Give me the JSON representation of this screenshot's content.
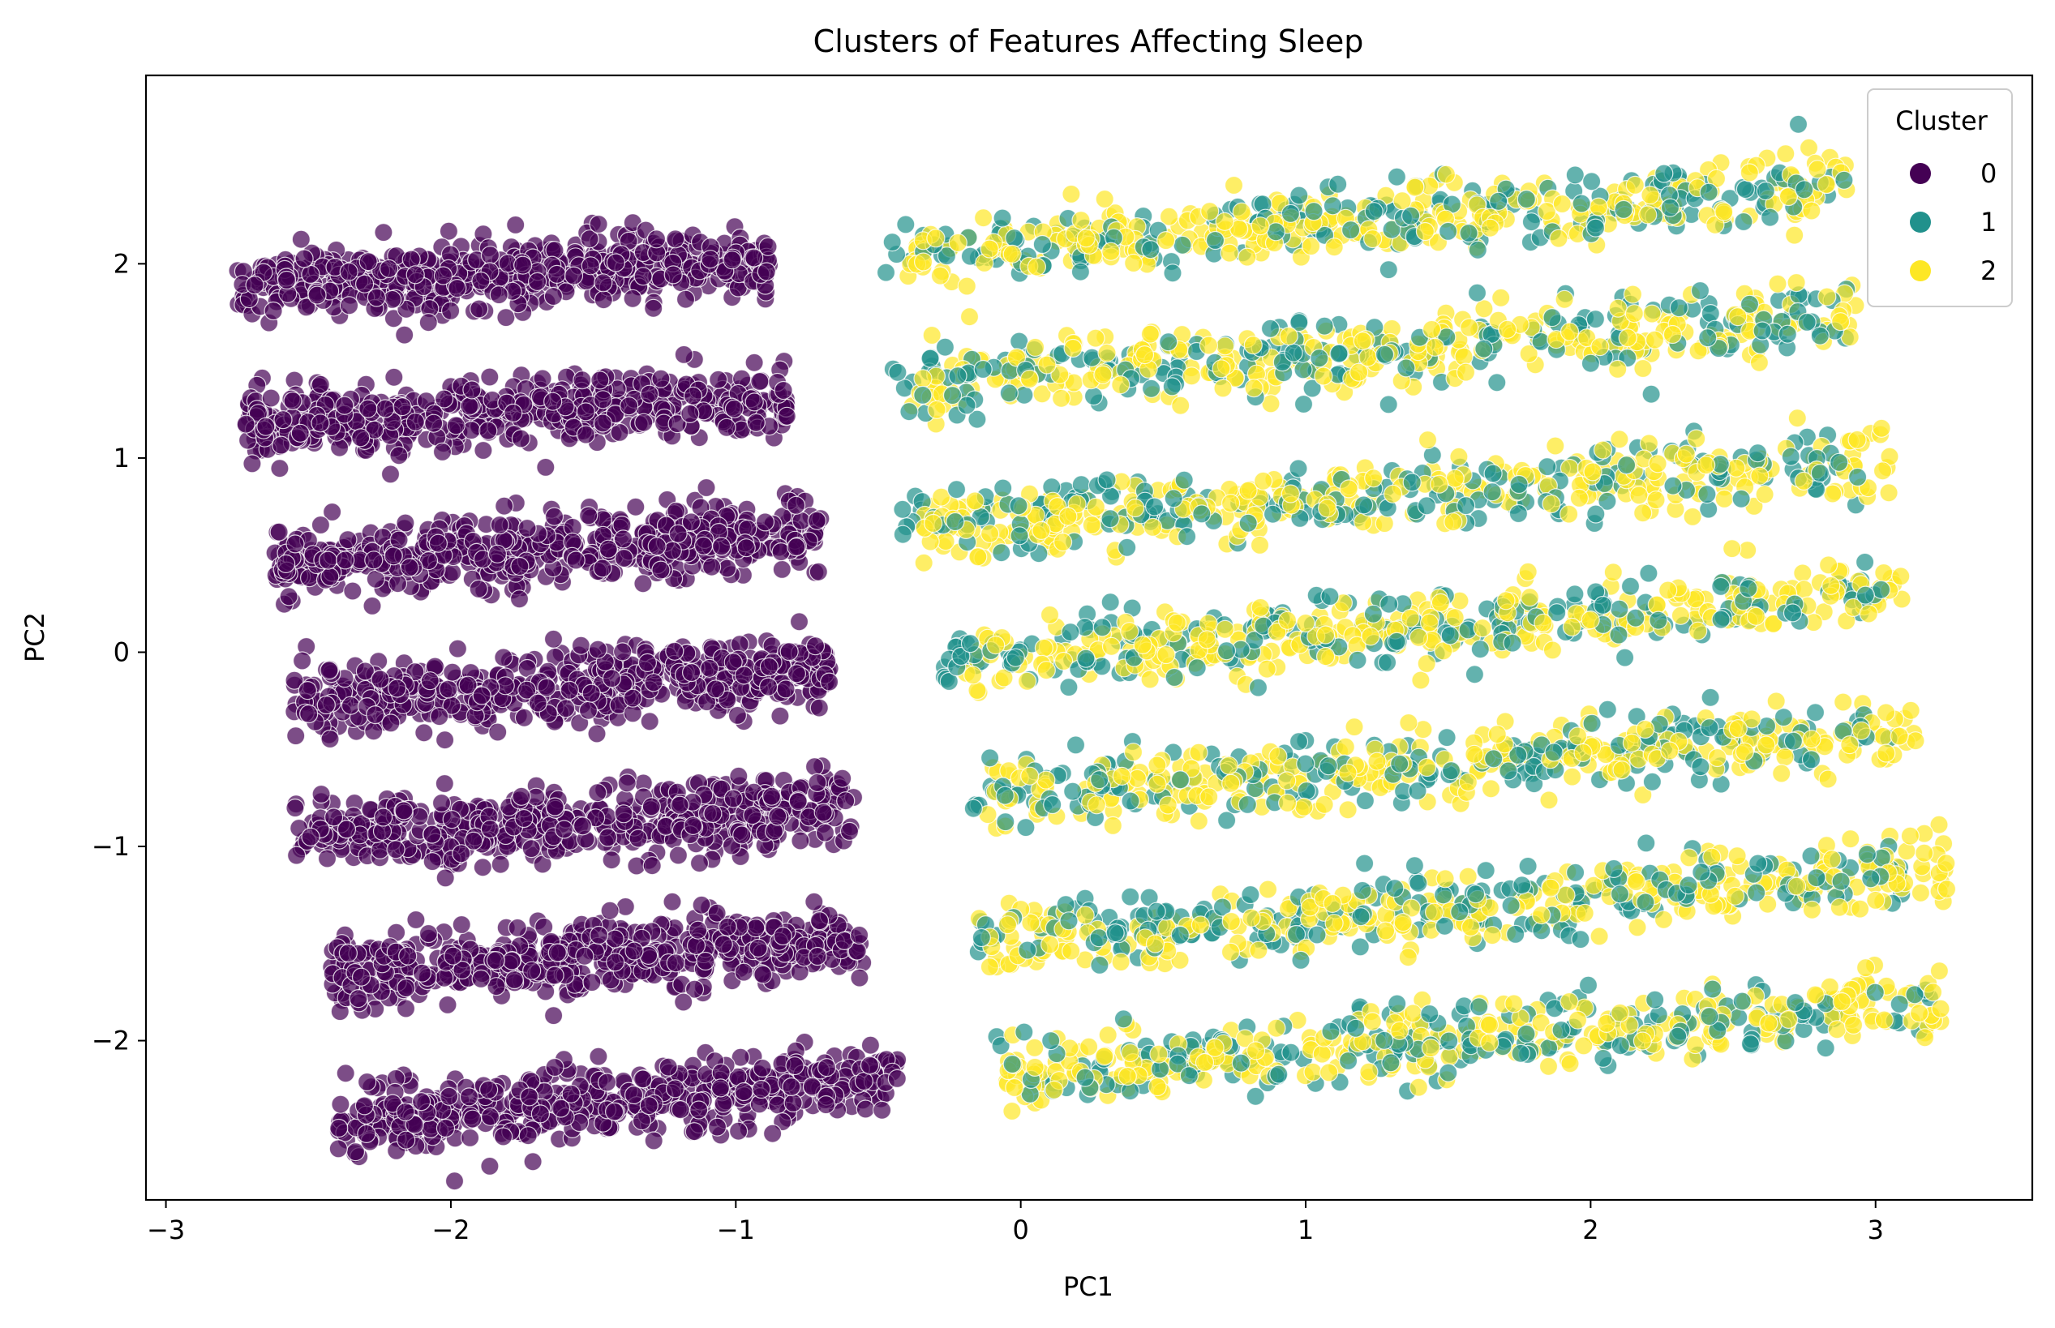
{
  "chart_data": {
    "type": "scatter",
    "title": "Clusters of Features Affecting Sleep",
    "xlabel": "PC1",
    "ylabel": "PC2",
    "xlim": [
      -3.07,
      3.55
    ],
    "ylim": [
      -2.82,
      2.97
    ],
    "xticks": [
      -3,
      -2,
      -1,
      0,
      1,
      2,
      3
    ],
    "yticks": [
      -2,
      -1,
      0,
      1,
      2
    ],
    "xtick_labels": [
      "−3",
      "−2",
      "−1",
      "0",
      "1",
      "2",
      "3"
    ],
    "ytick_labels": [
      "−2",
      "−1",
      "0",
      "1",
      "2"
    ],
    "grid": false,
    "legend": {
      "title": "Cluster",
      "position": "top-right",
      "entries": [
        "0",
        "1",
        "2"
      ]
    },
    "series": [
      {
        "name": "0",
        "color": "#440154",
        "bands": [
          {
            "x_range": [
              -2.75,
              -0.88
            ],
            "y_center_start": 1.88,
            "y_center_end": 2.02,
            "spread": 0.12
          },
          {
            "x_range": [
              -2.72,
              -0.82
            ],
            "y_center_start": 1.18,
            "y_center_end": 1.3,
            "spread": 0.12
          },
          {
            "x_range": [
              -2.62,
              -0.7
            ],
            "y_center_start": 0.45,
            "y_center_end": 0.62,
            "spread": 0.12
          },
          {
            "x_range": [
              -2.55,
              -0.67
            ],
            "y_center_start": -0.25,
            "y_center_end": -0.08,
            "spread": 0.12
          },
          {
            "x_range": [
              -2.55,
              -0.58
            ],
            "y_center_start": -0.95,
            "y_center_end": -0.8,
            "spread": 0.12
          },
          {
            "x_range": [
              -2.42,
              -0.55
            ],
            "y_center_start": -1.65,
            "y_center_end": -1.48,
            "spread": 0.12
          },
          {
            "x_range": [
              -2.4,
              -0.43
            ],
            "y_center_start": -2.42,
            "y_center_end": -2.2,
            "spread": 0.12
          }
        ]
      },
      {
        "name": "1",
        "color": "#21918c",
        "bands": [
          {
            "x_range": [
              -0.5,
              2.9
            ],
            "y_center_start": 2.05,
            "y_center_end": 2.4,
            "spread": 0.12
          },
          {
            "x_range": [
              -0.45,
              2.9
            ],
            "y_center_start": 1.38,
            "y_center_end": 1.72,
            "spread": 0.12
          },
          {
            "x_range": [
              -0.42,
              2.95
            ],
            "y_center_start": 0.65,
            "y_center_end": 0.98,
            "spread": 0.12
          },
          {
            "x_range": [
              -0.3,
              3.02
            ],
            "y_center_start": -0.05,
            "y_center_end": 0.3,
            "spread": 0.12
          },
          {
            "x_range": [
              -0.22,
              3.05
            ],
            "y_center_start": -0.75,
            "y_center_end": -0.4,
            "spread": 0.12
          },
          {
            "x_range": [
              -0.22,
              3.1
            ],
            "y_center_start": -1.5,
            "y_center_end": -1.12,
            "spread": 0.12
          },
          {
            "x_range": [
              -0.1,
              3.2
            ],
            "y_center_start": -2.18,
            "y_center_end": -1.8,
            "spread": 0.12
          }
        ]
      },
      {
        "name": "2",
        "color": "#fde725",
        "bands": [
          {
            "x_range": [
              -0.4,
              2.9
            ],
            "y_center_start": 2.05,
            "y_center_end": 2.4,
            "spread": 0.12
          },
          {
            "x_range": [
              -0.4,
              2.95
            ],
            "y_center_start": 1.38,
            "y_center_end": 1.72,
            "spread": 0.12
          },
          {
            "x_range": [
              -0.35,
              3.05
            ],
            "y_center_start": 0.65,
            "y_center_end": 0.98,
            "spread": 0.12
          },
          {
            "x_range": [
              -0.2,
              3.1
            ],
            "y_center_start": -0.05,
            "y_center_end": 0.3,
            "spread": 0.12
          },
          {
            "x_range": [
              -0.15,
              3.15
            ],
            "y_center_start": -0.75,
            "y_center_end": -0.4,
            "spread": 0.12
          },
          {
            "x_range": [
              -0.15,
              3.25
            ],
            "y_center_start": -1.5,
            "y_center_end": -1.12,
            "spread": 0.12
          },
          {
            "x_range": [
              -0.05,
              3.25
            ],
            "y_center_start": -2.18,
            "y_center_end": -1.8,
            "spread": 0.12
          }
        ]
      }
    ]
  }
}
